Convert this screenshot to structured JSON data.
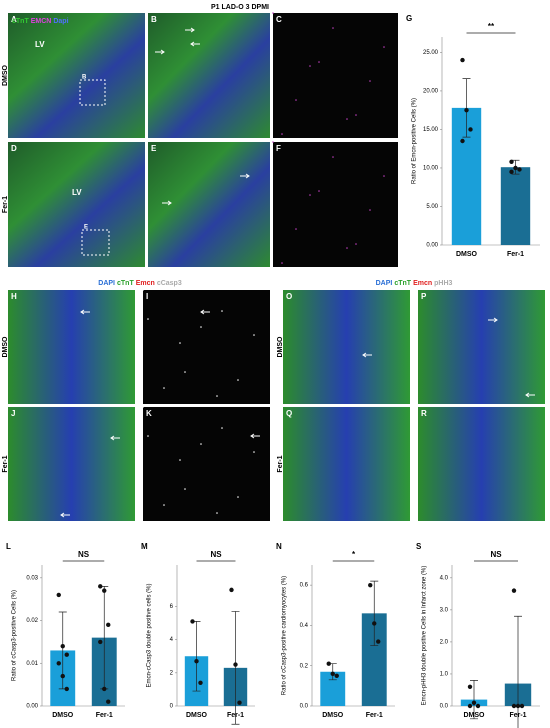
{
  "figure_title": "P1 LAD-O 3 DPMI",
  "stain_legend_top": [
    {
      "name": "cTnT",
      "color": "#33cc33"
    },
    {
      "name": "EMCN",
      "color": "#e040e0"
    },
    {
      "name": "Dapi",
      "color": "#5070ff"
    }
  ],
  "stain_legend_casp": [
    {
      "name": "DAPI",
      "color": "#2a6fd6"
    },
    {
      "name": "cTnT",
      "color": "#2aa02a"
    },
    {
      "name": "Emcn",
      "color": "#e02020"
    },
    {
      "name": "cCasp3",
      "color": "#aaaaaa"
    }
  ],
  "stain_legend_phh3": [
    {
      "name": "DAPI",
      "color": "#2a6fd6"
    },
    {
      "name": "cTnT",
      "color": "#2aa02a"
    },
    {
      "name": "Emcn",
      "color": "#e02020"
    },
    {
      "name": "pHH3",
      "color": "#aaaaaa"
    }
  ],
  "groups": [
    "DMSO",
    "Fer-1"
  ],
  "panels": {
    "top": [
      "A",
      "B",
      "C",
      "D",
      "E",
      "F"
    ],
    "casp": [
      "H",
      "I",
      "J",
      "K"
    ],
    "phh3": [
      "O",
      "P",
      "Q",
      "R"
    ]
  },
  "lv_label": "LV",
  "inset_labels": {
    "A": "B",
    "D": "E"
  },
  "chart_data": [
    {
      "type": "bar",
      "panel": "G",
      "ylabel": "Ratio of Emcn-positive Cells (%)",
      "annotation": "**",
      "categories": [
        "DMSO",
        "Fer-1"
      ],
      "values": [
        17.8,
        10.1
      ],
      "error": [
        3.8,
        0.9
      ],
      "colors": [
        "#1a9fd9",
        "#1a6e94"
      ],
      "points": [
        [
          24,
          17.5,
          15,
          13.5
        ],
        [
          10.8,
          10,
          9.8,
          9.5
        ]
      ],
      "ylim": [
        0,
        27
      ],
      "yticks": [
        {
          "value": 0,
          "label": "0.00"
        },
        {
          "value": 5,
          "label": "5.00"
        },
        {
          "value": 10,
          "label": "10.00"
        },
        {
          "value": 15,
          "label": "15.00"
        },
        {
          "value": 20,
          "label": "20.00"
        },
        {
          "value": 25,
          "label": "25.00"
        }
      ]
    },
    {
      "type": "bar",
      "panel": "L",
      "ylabel": "Ratio of cCasp3-positive Cells (%)",
      "annotation": "NS",
      "categories": [
        "DMSO",
        "Fer-1"
      ],
      "values": [
        0.013,
        0.016
      ],
      "error": [
        0.009,
        0.012
      ],
      "colors": [
        "#1a9fd9",
        "#1a6e94"
      ],
      "points": [
        [
          0.026,
          0.014,
          0.012,
          0.01,
          0.007,
          0.004
        ],
        [
          0.028,
          0.027,
          0.019,
          0.015,
          0.004,
          0.001
        ]
      ],
      "ylim": [
        0,
        0.033
      ],
      "yticks": [
        {
          "value": 0,
          "label": "0.00"
        },
        {
          "value": 0.01,
          "label": "0.01"
        },
        {
          "value": 0.02,
          "label": "0.02"
        },
        {
          "value": 0.03,
          "label": "0.03"
        }
      ]
    },
    {
      "type": "bar",
      "panel": "M",
      "ylabel": "Emcn-cCasp3 double positive cells (%)",
      "annotation": "NS",
      "categories": [
        "DMSO",
        "Fer-1"
      ],
      "values": [
        3.0,
        2.3
      ],
      "error": [
        2.1,
        3.4
      ],
      "colors": [
        "#1a9fd9",
        "#1a6e94"
      ],
      "points": [
        [
          5.1,
          2.7,
          1.4
        ],
        [
          7.0,
          2.5,
          0.2
        ]
      ],
      "ylim": [
        0,
        8.5
      ],
      "yticks": [
        0,
        2,
        4,
        6
      ]
    },
    {
      "type": "bar",
      "panel": "N",
      "ylabel": "Ratio of cCasp3-positive cardiomyocytes (%)",
      "annotation": "*",
      "categories": [
        "DMSO",
        "Fer-1"
      ],
      "values": [
        0.17,
        0.46
      ],
      "error": [
        0.04,
        0.16
      ],
      "colors": [
        "#1a9fd9",
        "#1a6e94"
      ],
      "points": [
        [
          0.21,
          0.16,
          0.15
        ],
        [
          0.6,
          0.41,
          0.32
        ]
      ],
      "ylim": [
        0,
        0.7
      ],
      "yticks": [
        {
          "value": 0,
          "label": "0.0"
        },
        {
          "value": 0.2,
          "label": "0.2"
        },
        {
          "value": 0.4,
          "label": "0.4"
        },
        {
          "value": 0.6,
          "label": "0.6"
        }
      ]
    },
    {
      "type": "bar",
      "panel": "S",
      "ylabel": "Emcn-pHH3 double positive Cells in Infarct zone (%)",
      "annotation": "NS",
      "categories": [
        "DMSO",
        "Fer-1"
      ],
      "values": [
        0.2,
        0.7
      ],
      "error": [
        0.6,
        2.1
      ],
      "colors": [
        "#1a9fd9",
        "#1a6e94"
      ],
      "points": [
        [
          0.6,
          0.1,
          0,
          0
        ],
        [
          3.6,
          0,
          0,
          0
        ]
      ],
      "ylim": [
        0,
        4.4
      ],
      "yticks": [
        {
          "value": 0,
          "label": "0.0"
        },
        {
          "value": 1,
          "label": "1.0"
        },
        {
          "value": 2,
          "label": "2.0"
        },
        {
          "value": 3,
          "label": "3.0"
        },
        {
          "value": 4,
          "label": "4.0"
        }
      ]
    }
  ]
}
